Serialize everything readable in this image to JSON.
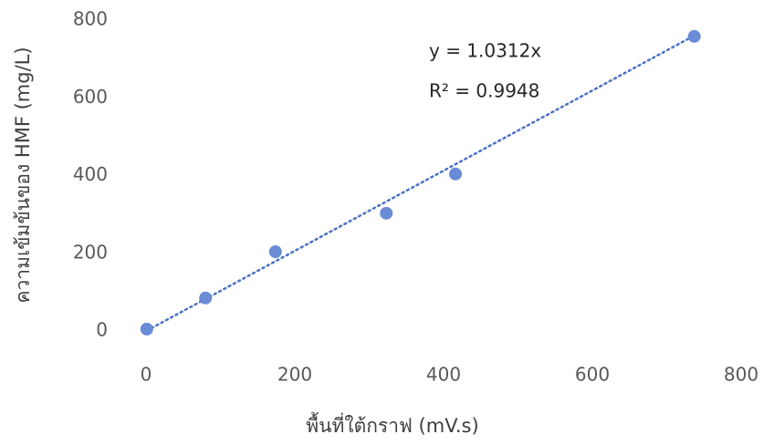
{
  "chart_data": {
    "type": "scatter",
    "x_label": "พื้นที่ใต้กราฟ (mV.s)",
    "y_label": "ความเข้มข้นของ HMF (mg/L)",
    "series": [
      {
        "color": "#6a8bd6",
        "x": [
          1,
          80,
          174,
          323,
          416,
          737
        ],
        "values": [
          5,
          85,
          204,
          303,
          404,
          758
        ]
      }
    ],
    "trendline": {
      "equation": "y = 1.0312x",
      "slope": 1.0312,
      "r_squared": "R² = 0.9948",
      "color": "#4a72c4"
    },
    "xlim": [
      0,
      800
    ],
    "xticks": [
      0,
      200,
      400,
      600,
      800
    ],
    "ylim": [
      0,
      800
    ],
    "yticks": [
      0,
      200,
      400,
      600,
      800
    ],
    "grid": false
  }
}
